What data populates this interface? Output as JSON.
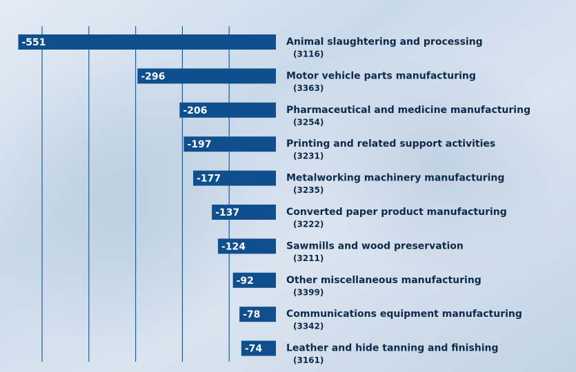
{
  "chart_data": {
    "type": "bar",
    "orientation": "horizontal",
    "categories": [
      "Animal slaughtering and processing",
      "Motor vehicle parts manufacturing",
      "Pharmaceutical and medicine manufacturing",
      "Printing and related support activities",
      "Metalworking machinery manufacturing",
      "Converted paper product manufacturing",
      "Sawmills and wood preservation",
      "Other miscellaneous manufacturing",
      "Communications equipment manufacturing",
      "Leather and hide tanning and finishing"
    ],
    "codes": [
      "(3116)",
      "(3363)",
      "(3254)",
      "(3231)",
      "(3235)",
      "(3222)",
      "(3211)",
      "(3399)",
      "(3342)",
      "(3161)"
    ],
    "values": [
      -551,
      -296,
      -206,
      -197,
      -177,
      -137,
      -124,
      -92,
      -78,
      -74
    ],
    "color": "#0f4f8e",
    "xlim": [
      -590,
      0
    ],
    "xticks": [
      -500,
      -400,
      -300,
      -200,
      -100
    ],
    "grid": true
  }
}
